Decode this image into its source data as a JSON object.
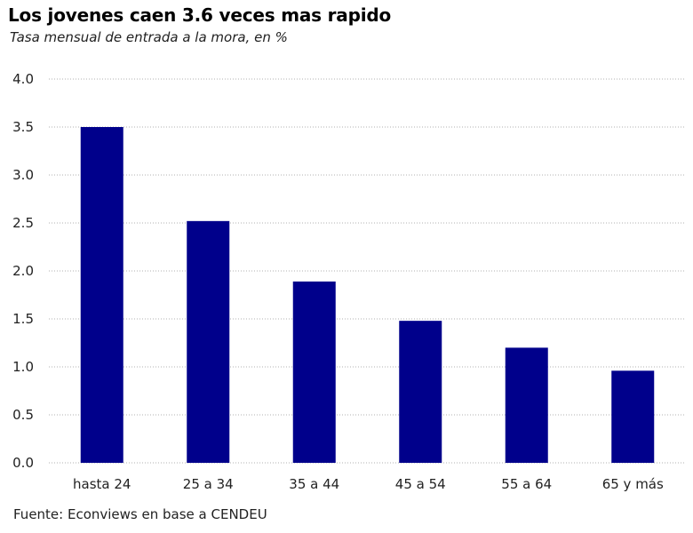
{
  "title": "Los jovenes caen 3.6 veces mas rapido",
  "subtitle": "Tasa mensual de entrada a la mora, en %",
  "source": "Fuente: Econviews en base a CENDEU",
  "chart_data": {
    "type": "bar",
    "title": "Los jovenes caen 3.6 veces mas rapido",
    "subtitle": "Tasa mensual de entrada a la mora, en %",
    "categories": [
      "hasta 24",
      "25 a 34",
      "35 a 44",
      "45 a 54",
      "55 a 64",
      "65 y más"
    ],
    "values": [
      3.5,
      2.52,
      1.89,
      1.48,
      1.2,
      0.96
    ],
    "xlabel": "",
    "ylabel": "",
    "ylim": [
      0,
      4.0
    ],
    "yticks": [
      "0.0",
      "0.5",
      "1.0",
      "1.5",
      "2.0",
      "2.5",
      "3.0",
      "3.5",
      "4.0"
    ],
    "grid": "horizontal dotted",
    "bar_color": "#00008b",
    "grid_color": "#b0b0b0"
  }
}
